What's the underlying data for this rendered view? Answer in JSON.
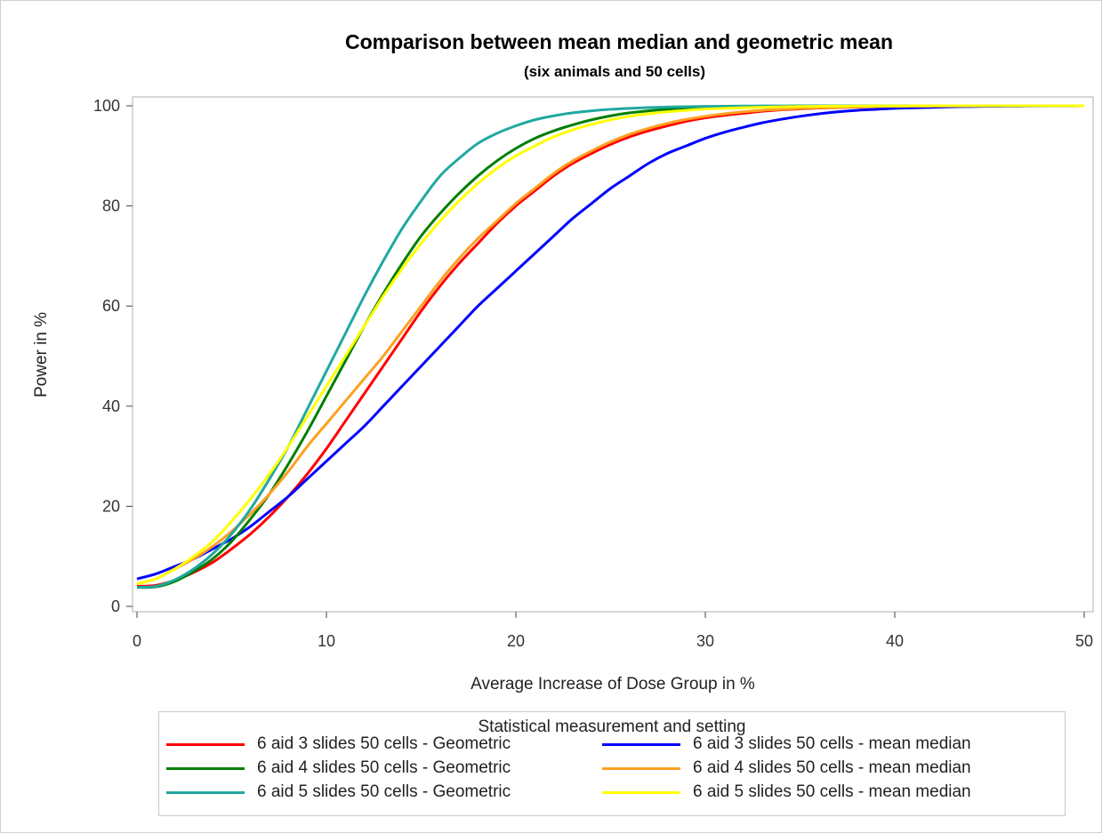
{
  "chart_data": {
    "type": "line",
    "title": "Comparison between mean median and geometric mean",
    "subtitle": "(six animals  and 50 cells)",
    "xlabel": "Average Increase of Dose Group in %",
    "ylabel": "Power in %",
    "xlim": [
      0,
      50
    ],
    "ylim": [
      0,
      100
    ],
    "xticks": [
      0,
      10,
      20,
      30,
      40,
      50
    ],
    "yticks": [
      0,
      20,
      40,
      60,
      80,
      100
    ],
    "grid": false,
    "legend_title": "Statistical measurement and setting",
    "legend_position": "bottom",
    "x": [
      0,
      1,
      2,
      3,
      4,
      5,
      6,
      7,
      8,
      9,
      10,
      11,
      12,
      13,
      14,
      15,
      16,
      17,
      18,
      19,
      20,
      21,
      22,
      23,
      24,
      25,
      26,
      27,
      28,
      29,
      30,
      31,
      32,
      33,
      34,
      35,
      36,
      37,
      38,
      39,
      40,
      41,
      42,
      43,
      44,
      45,
      46,
      47,
      48,
      49,
      50
    ],
    "series": [
      {
        "name": "6 aid 3 slides 50 cells - Geometric",
        "color": "#ff0000",
        "values": [
          4,
          4.2,
          5.2,
          6.8,
          8.8,
          11.5,
          14.5,
          18,
          22,
          26.5,
          31.5,
          37,
          42.5,
          48,
          53.5,
          59,
          64,
          68.5,
          72.5,
          76.5,
          80,
          83,
          86,
          88.5,
          90.5,
          92.3,
          93.8,
          95,
          96,
          96.9,
          97.6,
          98.1,
          98.5,
          98.9,
          99.2,
          99.4,
          99.55,
          99.65,
          99.75,
          99.82,
          99.87,
          99.9,
          99.93,
          99.95,
          99.96,
          99.97,
          99.98,
          99.99,
          99.99,
          100,
          100
        ]
      },
      {
        "name": "6 aid 3 slides 50 cells - mean median",
        "color": "#0000ff",
        "values": [
          5.5,
          6.5,
          8,
          9.5,
          11.5,
          13.5,
          16,
          19,
          22,
          25.5,
          29,
          32.5,
          36,
          40,
          44,
          48,
          52,
          56,
          60,
          63.5,
          67,
          70.5,
          74,
          77.5,
          80.5,
          83.5,
          86,
          88.5,
          90.5,
          92,
          93.5,
          94.7,
          95.7,
          96.6,
          97.3,
          97.9,
          98.4,
          98.8,
          99.1,
          99.3,
          99.5,
          99.6,
          99.7,
          99.8,
          99.85,
          99.9,
          99.93,
          99.95,
          99.97,
          99.98,
          100
        ]
      },
      {
        "name": "6 aid 4 slides 50 cells - Geometric",
        "color": "#007f00",
        "values": [
          3.8,
          3.9,
          5,
          7,
          9.5,
          13,
          17.5,
          22.5,
          28.5,
          35,
          42,
          49,
          56,
          62.5,
          68.5,
          74,
          78.5,
          82.5,
          86,
          89,
          91.5,
          93.5,
          95,
          96.2,
          97.2,
          98,
          98.6,
          99,
          99.3,
          99.5,
          99.65,
          99.75,
          99.83,
          99.88,
          99.92,
          99.95,
          99.97,
          99.98,
          99.99,
          99.99,
          100,
          100,
          100,
          100,
          100,
          100,
          100,
          100,
          100,
          100,
          100
        ]
      },
      {
        "name": "6 aid 4 slides 50 cells - mean median",
        "color": "#ffa020",
        "values": [
          4.5,
          5.5,
          7.5,
          9.5,
          12,
          15,
          18.5,
          22.5,
          27,
          32,
          36.5,
          41,
          45.5,
          50,
          55,
          60,
          65,
          69.5,
          73.5,
          77,
          80.5,
          83.5,
          86.5,
          89,
          91,
          92.8,
          94.3,
          95.5,
          96.5,
          97.3,
          97.9,
          98.4,
          98.8,
          99.1,
          99.3,
          99.5,
          99.6,
          99.7,
          99.8,
          99.85,
          99.9,
          99.93,
          99.95,
          99.97,
          99.98,
          99.99,
          99.99,
          100,
          100,
          100,
          100
        ]
      },
      {
        "name": "6 aid 5 slides 50 cells - Geometric",
        "color": "#20a8a0",
        "values": [
          3.8,
          4,
          5.3,
          7.5,
          10.5,
          14.5,
          19.5,
          25.5,
          32,
          39.5,
          47,
          54.5,
          62,
          69,
          75.5,
          81,
          86,
          89.5,
          92.5,
          94.5,
          96,
          97.2,
          98,
          98.6,
          99,
          99.3,
          99.5,
          99.65,
          99.75,
          99.83,
          99.88,
          99.92,
          99.95,
          99.97,
          99.98,
          99.99,
          99.99,
          100,
          100,
          100,
          100,
          100,
          100,
          100,
          100,
          100,
          100,
          100,
          100,
          100,
          100
        ]
      },
      {
        "name": "6 aid 5 slides 50 cells - mean median",
        "color": "#ffff00",
        "values": [
          4.5,
          5.5,
          7.5,
          10,
          13,
          17,
          21.5,
          26.5,
          32,
          38,
          44,
          50,
          56,
          62,
          67.5,
          72.5,
          77,
          81,
          84.5,
          87.5,
          90,
          92,
          93.8,
          95.2,
          96.3,
          97.2,
          97.9,
          98.4,
          98.8,
          99.1,
          99.35,
          99.5,
          99.62,
          99.72,
          99.8,
          99.86,
          99.9,
          99.93,
          99.95,
          99.97,
          99.98,
          99.99,
          99.99,
          100,
          100,
          100,
          100,
          100,
          100,
          100,
          100
        ]
      }
    ]
  }
}
